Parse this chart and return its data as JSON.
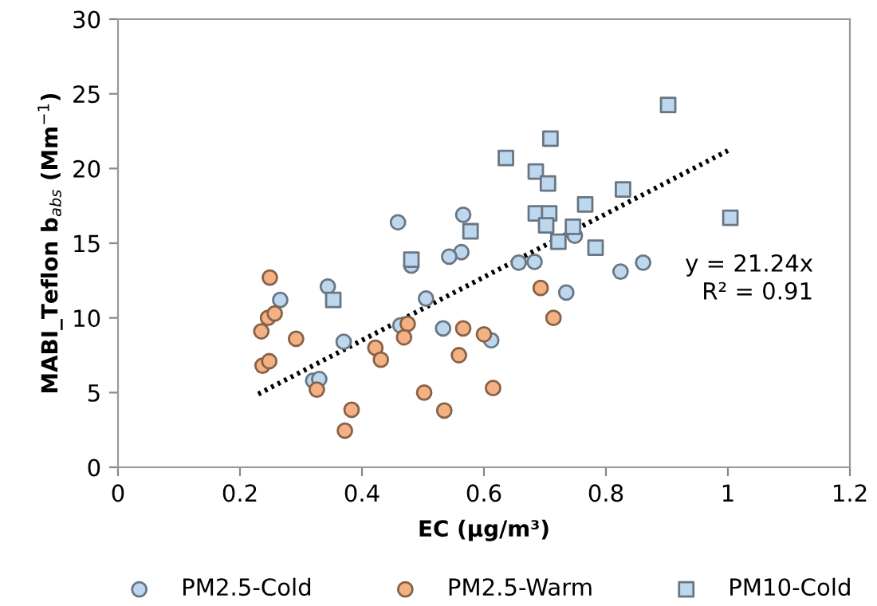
{
  "chart_data": {
    "type": "scatter",
    "xlabel": "EC (μg/m³)",
    "ylabel": "MABI_Teflon b$_{abs}$ (Mm$^{−1}$)",
    "xlim": [
      0,
      1.2
    ],
    "ylim": [
      0,
      30
    ],
    "xticks": [
      0,
      0.2,
      0.4,
      0.6,
      0.8,
      1,
      1.2
    ],
    "yticks": [
      0,
      5,
      10,
      15,
      20,
      25,
      30
    ],
    "grid": false,
    "legend": "bottom",
    "annotations": [
      "y = 21.24x",
      "R² = 0.91"
    ],
    "series": [
      {
        "name": "PM2.5-Cold",
        "color": "#bdd7ee",
        "marker": "circle",
        "x": [
          0.266,
          0.344,
          0.459,
          0.566,
          0.563,
          0.543,
          0.481,
          0.505,
          0.37,
          0.463,
          0.533,
          0.612,
          0.32,
          0.33,
          0.657,
          0.683,
          0.749,
          0.824,
          0.861,
          0.735
        ],
        "values": [
          11.2,
          12.1,
          16.4,
          16.9,
          14.4,
          14.1,
          13.5,
          11.3,
          8.4,
          9.5,
          9.3,
          8.5,
          5.8,
          5.9,
          13.7,
          13.75,
          15.5,
          13.1,
          13.7,
          11.7
        ]
      },
      {
        "name": "PM2.5-Warm",
        "color": "#f4b183",
        "marker": "circle",
        "x": [
          0.249,
          0.246,
          0.257,
          0.235,
          0.292,
          0.237,
          0.248,
          0.326,
          0.383,
          0.372,
          0.422,
          0.431,
          0.475,
          0.469,
          0.502,
          0.535,
          0.566,
          0.559,
          0.6,
          0.615,
          0.693,
          0.714
        ],
        "values": [
          12.7,
          10.0,
          10.3,
          9.1,
          8.6,
          6.8,
          7.1,
          5.2,
          3.85,
          2.45,
          8.0,
          7.2,
          9.6,
          8.7,
          5.0,
          3.8,
          9.3,
          7.5,
          8.9,
          5.3,
          12.0,
          10.0
        ]
      },
      {
        "name": "PM10-Cold",
        "color": "#bdd7ee",
        "marker": "square",
        "x": [
          0.353,
          0.481,
          0.578,
          0.636,
          0.685,
          0.705,
          0.709,
          0.685,
          0.707,
          0.702,
          0.746,
          0.722,
          0.766,
          0.783,
          0.828,
          0.902,
          1.004
        ],
        "values": [
          11.2,
          13.9,
          15.8,
          20.7,
          19.8,
          19.0,
          22.0,
          17.0,
          17.0,
          16.2,
          16.1,
          15.1,
          17.6,
          14.7,
          18.6,
          24.25,
          16.7
        ]
      },
      {
        "type": "line",
        "color": "#000000",
        "line_style": "dotted",
        "marker": "none",
        "x": [
          0.23,
          1.0
        ],
        "values": [
          4.9,
          21.2
        ]
      }
    ]
  }
}
